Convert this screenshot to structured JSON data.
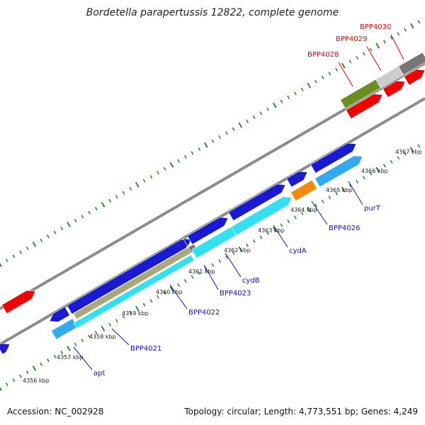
{
  "title": "Bordetella parapertussis 12822, complete genome",
  "footer": {
    "accession": "Accession: NC_002928",
    "stats": "Topology: circular; Length: 4,773,551 bp; Genes: 4,249"
  },
  "colors": {
    "backbone": "#8c8c8c",
    "tick": "#2e8b2e",
    "label_blue": "#1010c0",
    "label_red": "#e00000",
    "blue": "#1a1ad0",
    "cyan": "#33e0f0",
    "lightblue": "#33aaee",
    "olive": "#a8a878",
    "orange": "#f08a10",
    "red": "#f00000",
    "darkgreen": "#6b8e23",
    "gray": "#777777",
    "lightgray": "#cccccc"
  },
  "scale_ticks": [
    "4356 kbp",
    "4357 kbp",
    "4358 kbp",
    "4359 kbp",
    "4360 kbp",
    "4361 kbp",
    "4362 kbp",
    "4363 kbp",
    "4364 kbp",
    "4365 kbp",
    "4366 kbp",
    "4367 kbp"
  ],
  "gene_labels": [
    {
      "text": "apt",
      "color": "blue"
    },
    {
      "text": "BPP4021",
      "color": "blue"
    },
    {
      "text": "BPP4022",
      "color": "blue"
    },
    {
      "text": "BPP4023",
      "color": "blue"
    },
    {
      "text": "cydB",
      "color": "blue"
    },
    {
      "text": "cydA",
      "color": "blue"
    },
    {
      "text": "BPP4026",
      "color": "blue"
    },
    {
      "text": "purT",
      "color": "blue"
    },
    {
      "text": "BPP4028",
      "color": "red"
    },
    {
      "text": "BPP4029",
      "color": "red"
    },
    {
      "text": "BPP4030",
      "color": "red"
    }
  ]
}
